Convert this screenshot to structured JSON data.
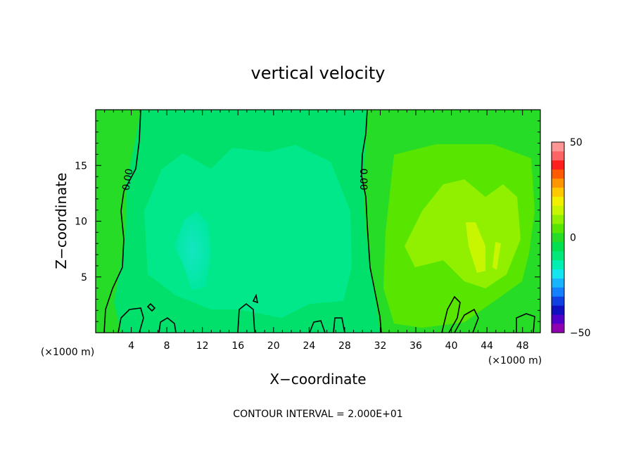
{
  "chart_data": {
    "type": "heatmap",
    "title": "vertical velocity",
    "xlabel": "X−coordinate",
    "ylabel": "Z−coordinate",
    "x_unit_left": "(×1000 m)",
    "x_unit_right": "(×1000 m)",
    "xlim": [
      0,
      50
    ],
    "ylim": [
      0,
      20
    ],
    "x_ticks": [
      4,
      8,
      12,
      16,
      20,
      24,
      28,
      32,
      36,
      40,
      44,
      48
    ],
    "y_ticks": [
      5,
      10,
      15
    ],
    "x_tick_labels": [
      "4",
      "8",
      "12",
      "16",
      "20",
      "24",
      "28",
      "32",
      "36",
      "40",
      "44",
      "48"
    ],
    "y_tick_labels": [
      "5",
      "10",
      "15"
    ],
    "colorbar": {
      "min": -50,
      "max": 50,
      "labels": [
        "50",
        "0",
        "−50"
      ],
      "label_values": [
        50,
        0,
        -50
      ],
      "colors": [
        "#8e00b0",
        "#5000c8",
        "#1010c0",
        "#1040e0",
        "#1480ff",
        "#18b4ff",
        "#14e6f0",
        "#00f0b4",
        "#00e87a",
        "#00e050",
        "#26dc26",
        "#58e600",
        "#90f000",
        "#c8f500",
        "#f0f000",
        "#ffc800",
        "#ff9600",
        "#ff5a00",
        "#ff1e1e",
        "#ff6464",
        "#ff9696"
      ]
    },
    "contour_label": "0.00",
    "annotation": "CONTOUR INTERVAL = 2.000E+01"
  }
}
